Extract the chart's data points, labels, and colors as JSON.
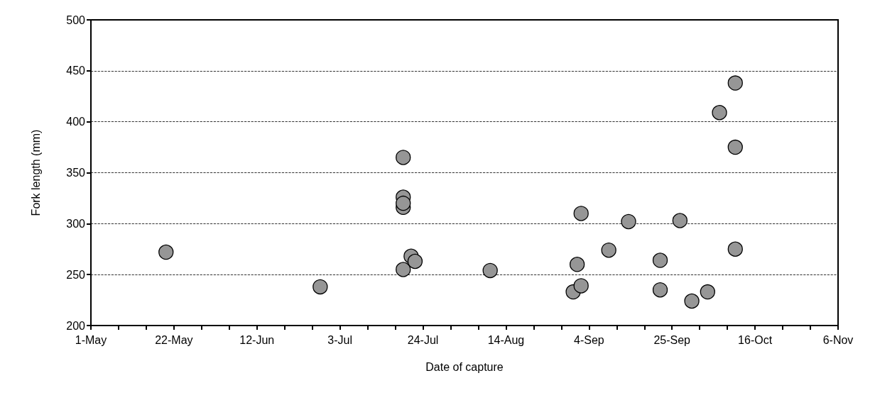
{
  "chart_data": {
    "type": "scatter",
    "xlabel": "Date of capture",
    "ylabel": "Fork length (mm)",
    "x": [
      "--05-20",
      "--06-28",
      "--07-19",
      "--07-19",
      "--07-19",
      "--07-19",
      "--07-19",
      "--07-21",
      "--07-22",
      "--08-10",
      "--08-31",
      "--09-01",
      "--09-02",
      "--09-02",
      "--09-09",
      "--09-14",
      "--09-22",
      "--09-22",
      "--09-27",
      "--09-30",
      "--10-04",
      "--10-07",
      "--10-11",
      "--10-11",
      "--10-11"
    ],
    "series": [
      {
        "color": "#969696",
        "values": [
          272,
          238,
          365,
          326,
          316,
          320,
          255,
          268,
          263,
          254,
          233,
          260,
          239,
          310,
          274,
          302,
          264,
          235,
          303,
          224,
          233,
          409,
          438,
          375,
          275
        ]
      }
    ],
    "xlim": [
      "--05-01",
      "--11-06"
    ],
    "xticks": [
      {
        "value": "--05-01",
        "label": "1-May"
      },
      {
        "value": "--05-08",
        "label": null
      },
      {
        "value": "--05-15",
        "label": null
      },
      {
        "value": "--05-22",
        "label": "22-May"
      },
      {
        "value": "--05-29",
        "label": null
      },
      {
        "value": "--06-05",
        "label": null
      },
      {
        "value": "--06-12",
        "label": "12-Jun"
      },
      {
        "value": "--06-19",
        "label": null
      },
      {
        "value": "--06-26",
        "label": null
      },
      {
        "value": "--07-03",
        "label": "3-Jul"
      },
      {
        "value": "--07-10",
        "label": null
      },
      {
        "value": "--07-17",
        "label": null
      },
      {
        "value": "--07-24",
        "label": "24-Jul"
      },
      {
        "value": "--07-31",
        "label": null
      },
      {
        "value": "--08-07",
        "label": null
      },
      {
        "value": "--08-14",
        "label": "14-Aug"
      },
      {
        "value": "--08-21",
        "label": null
      },
      {
        "value": "--08-28",
        "label": null
      },
      {
        "value": "--09-04",
        "label": "4-Sep"
      },
      {
        "value": "--09-11",
        "label": null
      },
      {
        "value": "--09-18",
        "label": null
      },
      {
        "value": "--09-25",
        "label": "25-Sep"
      },
      {
        "value": "--10-02",
        "label": null
      },
      {
        "value": "--10-09",
        "label": null
      },
      {
        "value": "--10-16",
        "label": "16-Oct"
      },
      {
        "value": "--10-23",
        "label": null
      },
      {
        "value": "--10-30",
        "label": null
      },
      {
        "value": "--11-06",
        "label": "6-Nov"
      }
    ],
    "ylim": [
      200,
      500
    ],
    "yticks": [
      200,
      250,
      300,
      350,
      400,
      450,
      500
    ],
    "grid": "y",
    "marker": "circle"
  }
}
